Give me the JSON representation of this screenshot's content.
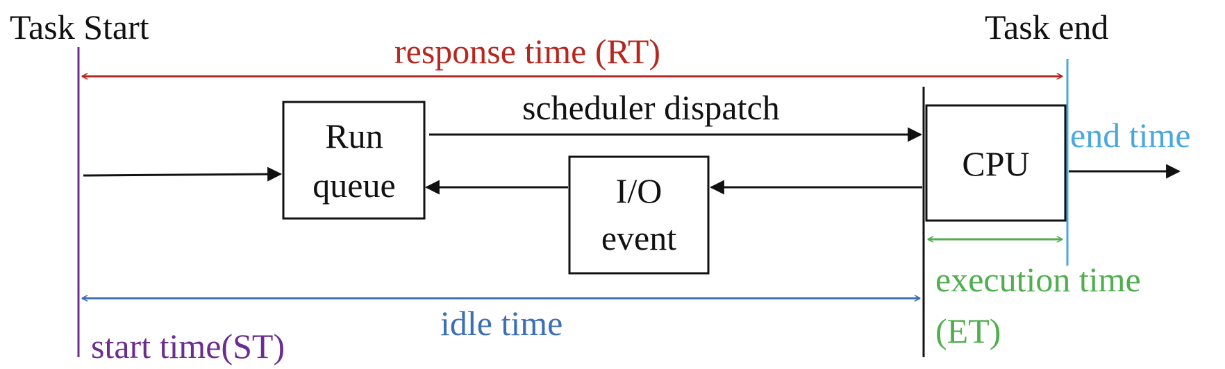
{
  "labels": {
    "task_start": "Task Start",
    "task_end": "Task end",
    "response_time": "response time (RT)",
    "scheduler_dispatch": "scheduler dispatch",
    "end_time": "end time",
    "execution_time_line1": "execution time",
    "execution_time_line2": "(ET)",
    "idle_time": "idle time",
    "start_time": "start time(ST)"
  },
  "boxes": {
    "run_queue": {
      "line1": "Run",
      "line2": "queue"
    },
    "io_event": {
      "line1": "I/O",
      "line2": "event"
    },
    "cpu": {
      "label": "CPU"
    }
  },
  "colors": {
    "black": "#111111",
    "response_red": "#b5271f",
    "start_purple": "#6b2d8f",
    "idle_blue": "#3b6fb6",
    "end_cyan": "#4aa8de",
    "exec_green": "#4fae4e"
  }
}
